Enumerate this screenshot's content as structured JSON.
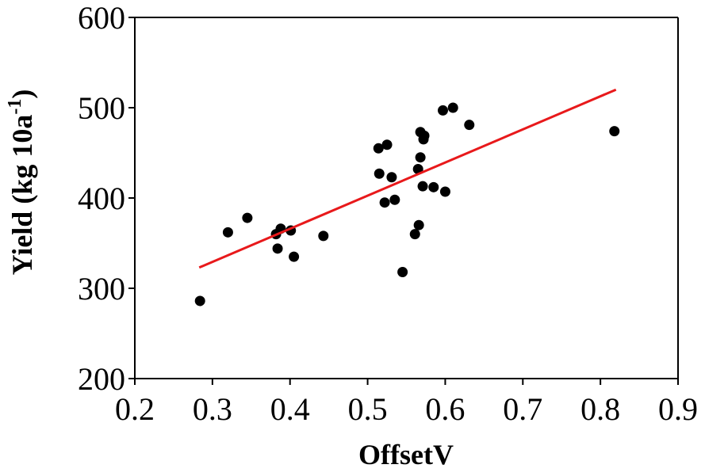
{
  "chart_data": {
    "type": "scatter",
    "title": "",
    "xlabel": "OffsetV",
    "ylabel_main": "Yield (kg 10a",
    "ylabel_sup": "-1",
    "ylabel_close": ")",
    "xlim": [
      0.2,
      0.9
    ],
    "ylim": [
      200,
      600
    ],
    "x_ticks": [
      0.2,
      0.3,
      0.4,
      0.5,
      0.6,
      0.7,
      0.8,
      0.9
    ],
    "x_tick_labels": [
      "0.2",
      "0.3",
      "0.4",
      "0.5",
      "0.6",
      "0.7",
      "0.8",
      "0.9"
    ],
    "y_ticks": [
      200,
      300,
      400,
      500,
      600
    ],
    "y_tick_labels": [
      "200",
      "300",
      "400",
      "500",
      "600"
    ],
    "grid": false,
    "legend": "none",
    "point_color": "#000000",
    "trend_color": "#e8191b",
    "points": [
      {
        "x": 0.284,
        "y": 286
      },
      {
        "x": 0.32,
        "y": 362
      },
      {
        "x": 0.345,
        "y": 378
      },
      {
        "x": 0.382,
        "y": 360
      },
      {
        "x": 0.384,
        "y": 344
      },
      {
        "x": 0.388,
        "y": 366
      },
      {
        "x": 0.401,
        "y": 364
      },
      {
        "x": 0.405,
        "y": 335
      },
      {
        "x": 0.443,
        "y": 358
      },
      {
        "x": 0.514,
        "y": 455
      },
      {
        "x": 0.515,
        "y": 427
      },
      {
        "x": 0.522,
        "y": 395
      },
      {
        "x": 0.525,
        "y": 459
      },
      {
        "x": 0.531,
        "y": 423
      },
      {
        "x": 0.535,
        "y": 398
      },
      {
        "x": 0.545,
        "y": 318
      },
      {
        "x": 0.561,
        "y": 360
      },
      {
        "x": 0.565,
        "y": 432
      },
      {
        "x": 0.566,
        "y": 370
      },
      {
        "x": 0.568,
        "y": 473
      },
      {
        "x": 0.568,
        "y": 445
      },
      {
        "x": 0.571,
        "y": 413
      },
      {
        "x": 0.572,
        "y": 465
      },
      {
        "x": 0.573,
        "y": 469
      },
      {
        "x": 0.585,
        "y": 412
      },
      {
        "x": 0.597,
        "y": 497
      },
      {
        "x": 0.6,
        "y": 407
      },
      {
        "x": 0.61,
        "y": 500
      },
      {
        "x": 0.631,
        "y": 481
      },
      {
        "x": 0.818,
        "y": 474
      }
    ],
    "trendline": [
      {
        "x": 0.283,
        "y": 323
      },
      {
        "x": 0.82,
        "y": 520
      }
    ]
  }
}
